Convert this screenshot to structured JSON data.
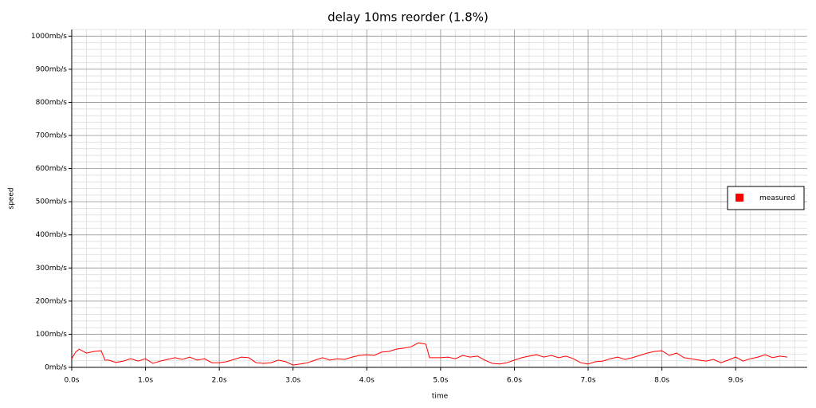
{
  "chart_data": {
    "type": "line",
    "title": "delay 10ms reorder (1.8%)",
    "x_label": "time",
    "y_label": "speed",
    "x": [
      0.0,
      0.05,
      0.1,
      0.2,
      0.3,
      0.4,
      0.45,
      0.5,
      0.6,
      0.7,
      0.8,
      0.9,
      1.0,
      1.1,
      1.2,
      1.3,
      1.4,
      1.5,
      1.6,
      1.7,
      1.8,
      1.9,
      2.0,
      2.1,
      2.2,
      2.3,
      2.4,
      2.5,
      2.6,
      2.7,
      2.8,
      2.9,
      3.0,
      3.1,
      3.2,
      3.3,
      3.4,
      3.5,
      3.6,
      3.7,
      3.8,
      3.9,
      4.0,
      4.1,
      4.2,
      4.3,
      4.4,
      4.5,
      4.6,
      4.7,
      4.8,
      4.85,
      4.9,
      5.0,
      5.1,
      5.2,
      5.3,
      5.4,
      5.5,
      5.6,
      5.7,
      5.8,
      5.9,
      6.0,
      6.1,
      6.2,
      6.3,
      6.4,
      6.5,
      6.6,
      6.7,
      6.8,
      6.9,
      7.0,
      7.1,
      7.2,
      7.3,
      7.4,
      7.5,
      7.6,
      7.7,
      7.8,
      7.9,
      8.0,
      8.1,
      8.2,
      8.3,
      8.4,
      8.5,
      8.6,
      8.7,
      8.8,
      8.9,
      9.0,
      9.1,
      9.2,
      9.3,
      9.4,
      9.5,
      9.6,
      9.7
    ],
    "series": [
      {
        "name": "measured",
        "color": "#ff0000",
        "values": [
          26,
          45,
          55,
          43,
          48,
          50,
          22,
          22,
          15,
          19,
          26,
          19,
          26,
          12,
          19,
          24,
          29,
          24,
          31,
          22,
          26,
          14,
          14,
          17,
          24,
          31,
          29,
          14,
          12,
          14,
          22,
          17,
          7,
          10,
          14,
          22,
          29,
          22,
          26,
          24,
          31,
          36,
          38,
          36,
          46,
          48,
          55,
          58,
          62,
          74,
          70,
          29,
          29,
          29,
          31,
          26,
          36,
          31,
          34,
          22,
          12,
          10,
          14,
          22,
          29,
          34,
          38,
          31,
          36,
          29,
          34,
          26,
          14,
          10,
          17,
          19,
          26,
          31,
          24,
          29,
          36,
          43,
          48,
          50,
          36,
          43,
          29,
          26,
          22,
          19,
          24,
          14,
          22,
          31,
          19,
          26,
          31,
          38,
          29,
          34,
          31
        ]
      }
    ],
    "xlim": [
      0,
      9.97
    ],
    "ylim": [
      0,
      1020
    ],
    "xticks": [
      {
        "value": 0,
        "label": "0.0s"
      },
      {
        "value": 1,
        "label": "1.0s"
      },
      {
        "value": 2,
        "label": "2.0s"
      },
      {
        "value": 3,
        "label": "3.0s"
      },
      {
        "value": 4,
        "label": "4.0s"
      },
      {
        "value": 5,
        "label": "5.0s"
      },
      {
        "value": 6,
        "label": "6.0s"
      },
      {
        "value": 7,
        "label": "7.0s"
      },
      {
        "value": 8,
        "label": "8.0s"
      },
      {
        "value": 9,
        "label": "9.0s"
      }
    ],
    "yticks": [
      {
        "value": 0,
        "label": "0mb/s"
      },
      {
        "value": 100,
        "label": "100mb/s"
      },
      {
        "value": 200,
        "label": "200mb/s"
      },
      {
        "value": 300,
        "label": "300mb/s"
      },
      {
        "value": 400,
        "label": "400mb/s"
      },
      {
        "value": 500,
        "label": "500mb/s"
      },
      {
        "value": 600,
        "label": "600mb/s"
      },
      {
        "value": 700,
        "label": "700mb/s"
      },
      {
        "value": 800,
        "label": "800mb/s"
      },
      {
        "value": 900,
        "label": "900mb/s"
      },
      {
        "value": 1000,
        "label": "1000mb/s"
      }
    ],
    "grid": true,
    "minor_grid": true,
    "legend": "right"
  }
}
